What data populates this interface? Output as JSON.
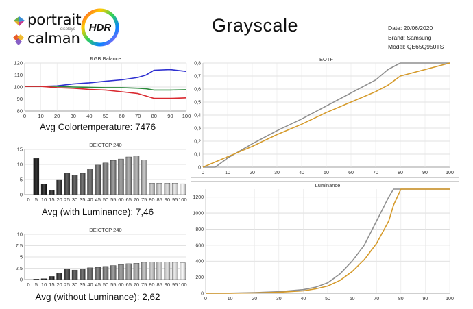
{
  "header": {
    "title": "Grayscale",
    "date": "Date: 20/06/2020",
    "brand": "Brand: Samsung",
    "model": "Model: QE65Q950TS"
  },
  "logos": {
    "portrait": "portrait",
    "portrait_sub": "displays",
    "calman": "calman",
    "hdr": "HDR"
  },
  "colors": {
    "red": "#d9282f",
    "green": "#2a8a3a",
    "blue": "#2d2fd0",
    "gray": "#8f8f8f",
    "gold": "#d59a2a",
    "grid": "#d8d8d8"
  },
  "chart_data": [
    {
      "id": "rgb",
      "type": "line",
      "title": "RGB Balance",
      "x": [
        0,
        10,
        20,
        30,
        40,
        50,
        60,
        70,
        75,
        80,
        90,
        100
      ],
      "xticks": [
        0,
        10,
        20,
        30,
        40,
        50,
        60,
        70,
        80,
        90,
        100
      ],
      "ylim": [
        80,
        120
      ],
      "yticks": [
        80,
        90,
        100,
        110,
        120
      ],
      "series": [
        {
          "color": "#2d2fd0",
          "values": [
            100.5,
            100.5,
            101,
            102.5,
            103.5,
            104.8,
            106,
            108,
            110,
            114,
            114.5,
            113
          ]
        },
        {
          "color": "#2a8a3a",
          "values": [
            100.5,
            100.5,
            100.5,
            100,
            99.8,
            99.5,
            99.5,
            99,
            98.5,
            97.5,
            97.5,
            97.8
          ]
        },
        {
          "color": "#d9282f",
          "values": [
            100.5,
            100.5,
            99.5,
            99,
            98,
            97.5,
            96,
            94.5,
            92.5,
            90.5,
            90.5,
            91
          ]
        }
      ],
      "caption": "Avg Colortemperature: 7476"
    },
    {
      "id": "ictcp_lum",
      "type": "bar",
      "title": "DEICTCP 240",
      "categories": [
        "0",
        "5",
        "10",
        "15",
        "20",
        "25",
        "30",
        "35",
        "40",
        "45",
        "50",
        "55",
        "60",
        "65",
        "70",
        "75",
        "80",
        "85",
        "90",
        "95",
        "100"
      ],
      "values": [
        0,
        12,
        3.5,
        1.5,
        5,
        7,
        6.5,
        7,
        8.5,
        9.8,
        10.5,
        11.3,
        11.8,
        12.5,
        12.8,
        11.5,
        3.8,
        3.8,
        3.8,
        3.8,
        3.6
      ],
      "ylim": [
        0,
        15
      ],
      "yticks": [
        0,
        5,
        10,
        15
      ],
      "caption": "Avg (with Luminance): 7,46"
    },
    {
      "id": "ictcp_nolum",
      "type": "bar",
      "title": "DEICTCP 240",
      "categories": [
        "0",
        "5",
        "10",
        "15",
        "20",
        "25",
        "30",
        "35",
        "40",
        "45",
        "50",
        "55",
        "60",
        "65",
        "70",
        "75",
        "80",
        "85",
        "90",
        "95",
        "100"
      ],
      "values": [
        0,
        0.1,
        0.2,
        0.7,
        1.4,
        2.4,
        2.1,
        2.3,
        2.6,
        2.7,
        2.9,
        3.1,
        3.3,
        3.5,
        3.6,
        3.8,
        3.9,
        3.9,
        3.9,
        3.8,
        3.7
      ],
      "ylim": [
        0,
        10
      ],
      "yticks": [
        0,
        2.5,
        5,
        7.5,
        10
      ],
      "caption": "Avg (without Luminance): 2,62"
    },
    {
      "id": "eotf",
      "type": "line",
      "title": "EOTF",
      "x": [
        0,
        5,
        10,
        20,
        30,
        40,
        50,
        60,
        70,
        75,
        80,
        100
      ],
      "xticks": [
        0,
        10,
        20,
        30,
        40,
        50,
        60,
        70,
        80,
        90,
        100
      ],
      "ylim": [
        0,
        0.8
      ],
      "yticks": [
        "0",
        "0,1",
        "0,2",
        "0,3",
        "0,4",
        "0,5",
        "0,6",
        "0,7",
        "0,8"
      ],
      "series": [
        {
          "color": "#8f8f8f",
          "values": [
            0,
            0,
            0.07,
            0.18,
            0.28,
            0.37,
            0.47,
            0.57,
            0.67,
            0.75,
            0.8,
            0.8
          ]
        },
        {
          "color": "#d59a2a",
          "values": [
            0,
            0.04,
            0.08,
            0.16,
            0.25,
            0.33,
            0.42,
            0.5,
            0.58,
            0.63,
            0.7,
            0.8
          ]
        }
      ]
    },
    {
      "id": "luminance",
      "type": "line",
      "title": "Luminance",
      "x": [
        0,
        10,
        20,
        30,
        40,
        45,
        50,
        55,
        60,
        65,
        70,
        75,
        77,
        80,
        100
      ],
      "xticks": [
        0,
        10,
        20,
        30,
        40,
        50,
        60,
        70,
        80,
        90,
        100
      ],
      "ylim": [
        0,
        1300
      ],
      "yticks": [
        0,
        200,
        400,
        600,
        800,
        1000,
        1200
      ],
      "series": [
        {
          "color": "#8f8f8f",
          "values": [
            0,
            2,
            8,
            20,
            45,
            75,
            130,
            240,
            400,
            600,
            900,
            1200,
            1300,
            1300,
            1300
          ]
        },
        {
          "color": "#d59a2a",
          "values": [
            0,
            1,
            4,
            12,
            30,
            55,
            90,
            160,
            270,
            420,
            620,
            900,
            1100,
            1300,
            1300
          ]
        }
      ]
    }
  ]
}
